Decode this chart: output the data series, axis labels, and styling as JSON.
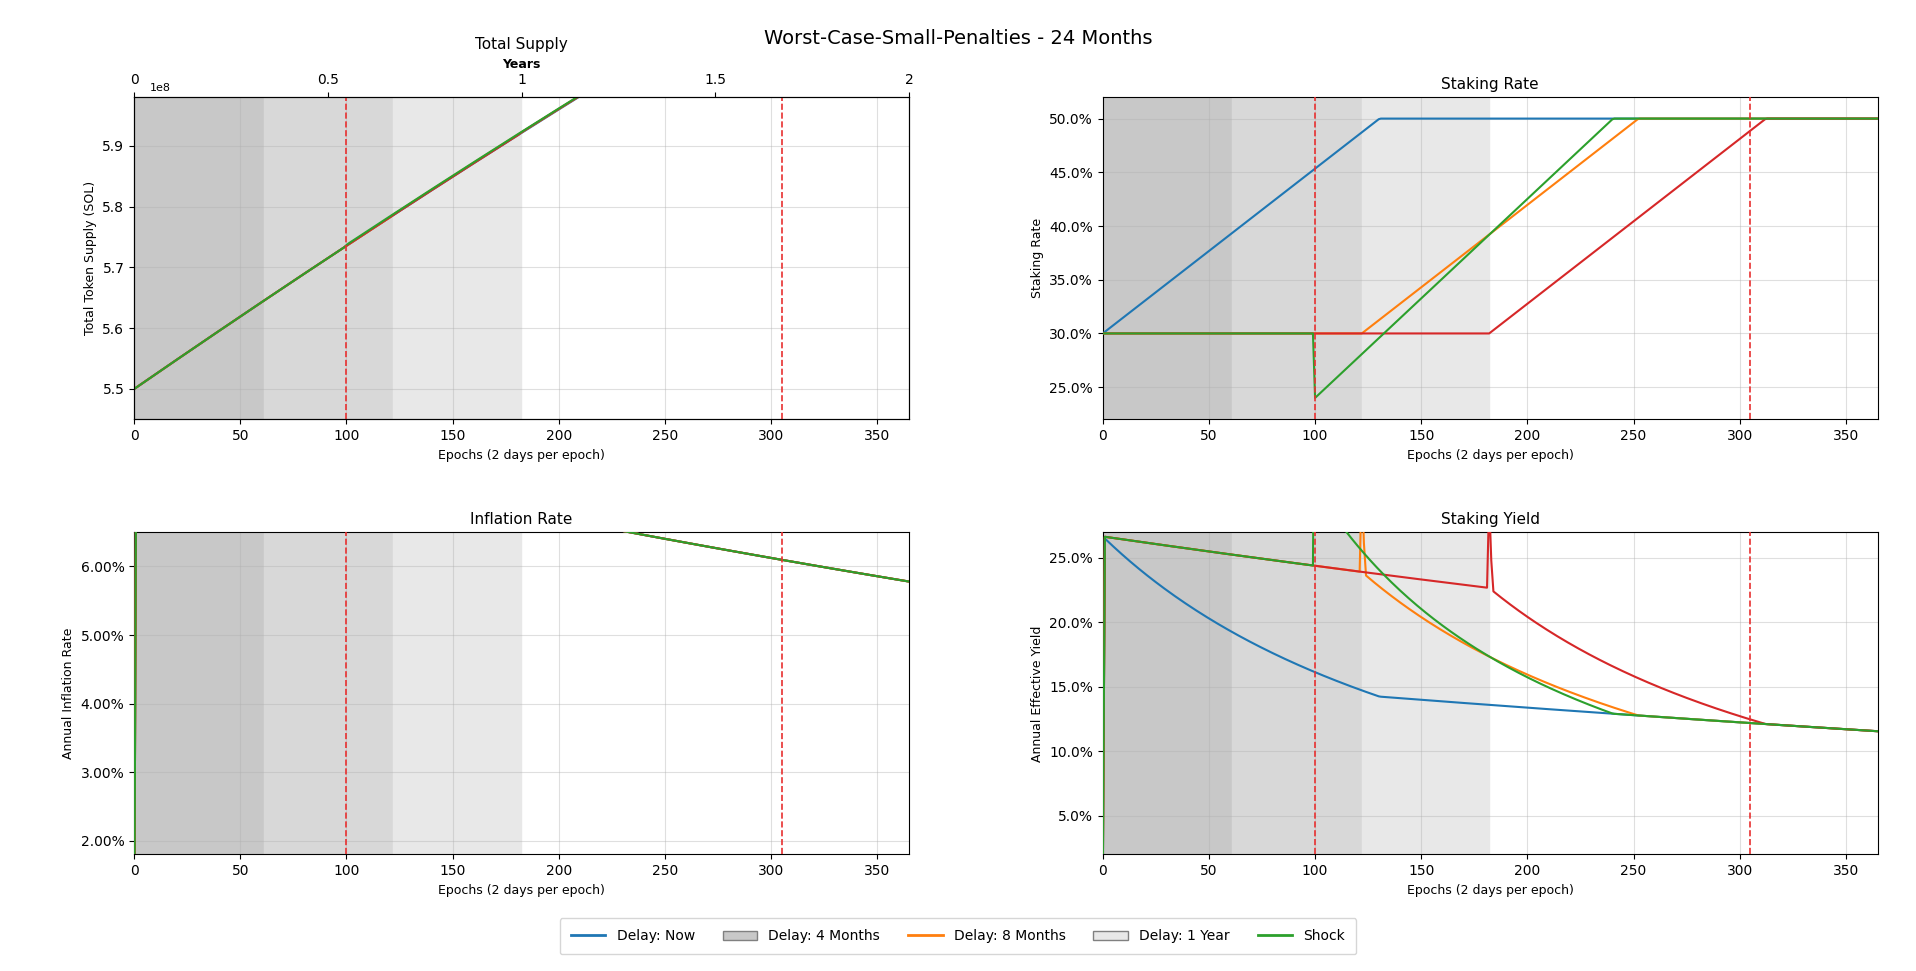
{
  "title": "Worst-Case-Small-Penalties - 24 Months",
  "n_epochs": 365,
  "epochs_per_year": 182.5,
  "initial_supply": 550000000,
  "delay_now_epochs": 0,
  "delay_4m_epochs": 61,
  "delay_8m_epochs": 122,
  "delay_1y_epochs": 182,
  "shock_epoch": 100,
  "red_dashed_lines": [
    100,
    305
  ],
  "colors": {
    "delay_now": "#1f77b4",
    "delay_4m": "#ff7f0e",
    "delay_8m": "#ff7f0e",
    "delay_1y": "#aaaaaa",
    "shock": "#2ca02c",
    "red_dashed": "#e83030"
  },
  "bg_colors": {
    "zone1": "#d9d9d9",
    "zone2": "#e8e8e8",
    "zone3": "#f0f0f0"
  },
  "subplot_titles": [
    "Total Supply",
    "Staking Rate",
    "Inflation Rate",
    "Staking Yield"
  ],
  "ylabels": [
    "Total Token Supply (SOL)",
    "Staking Rate",
    "Annual Inflation Rate",
    "Annual Effective Yield"
  ],
  "xlabel": "Epochs (2 days per epoch)",
  "secondary_xlabel": "Years",
  "secondary_xlabel_title": "Total Supply",
  "supply_ylim": [
    545000000.0,
    598000000.0
  ],
  "staking_ylim": [
    0.22,
    0.52
  ],
  "inflation_ylim": [
    0.018,
    0.065
  ],
  "yield_ylim": [
    0.02,
    0.27
  ]
}
